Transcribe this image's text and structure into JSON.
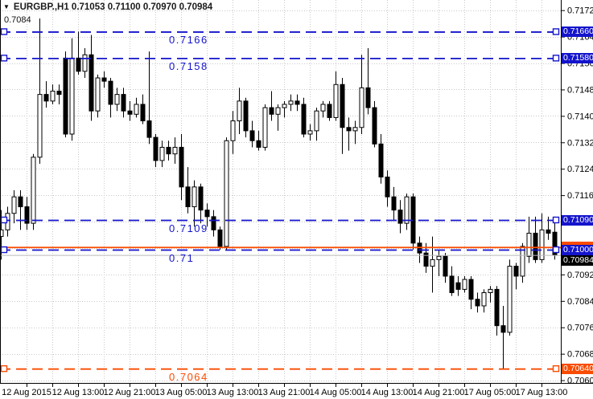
{
  "window": {
    "title": "EURGBP.,H1 0.71053 0.71100 0.70970 0.70984",
    "dropdown_icon": "▼",
    "annotation": "0.7084"
  },
  "colors": {
    "background": "#ffffff",
    "grid": "#c9c9c9",
    "candle_up_fill": "#ffffff",
    "candle_down_fill": "#000000",
    "candle_outline": "#000000",
    "level_blue": "#1414cc",
    "level_orange": "#f94b00",
    "bid_line": "#b9b9b9",
    "bid_box": "#000000",
    "axis_text": "#000000"
  },
  "chart_data": {
    "type": "candlestick",
    "symbol": "EURGBP.",
    "timeframe": "H1",
    "last_candle": {
      "open": "0.71053",
      "high": "0.71100",
      "low": "0.70970",
      "close": "0.70984"
    },
    "bid": "0.70984",
    "y_axis_labels": [
      "0.71725",
      "0.71645",
      "0.71565",
      "0.71485",
      "0.71405",
      "0.71325",
      "0.71245",
      "0.71165",
      "0.71085",
      "0.71005",
      "0.70925",
      "0.70845",
      "0.70765",
      "0.70685",
      "0.70605"
    ],
    "x_axis_labels": [
      "12 Aug 2015",
      "12 Aug 13:00",
      "12 Aug 21:00",
      "13 Aug 05:00",
      "13 Aug 13:00",
      "13 Aug 21:00",
      "14 Aug 05:00",
      "14 Aug 13:00",
      "14 Aug 21:00",
      "17 Aug 05:00",
      "17 Aug 13:00"
    ],
    "levels": [
      {
        "price": 0.7166,
        "text": "0.7166",
        "axis_text": "0.71660",
        "color_key": "blue",
        "dash": true,
        "handles": true
      },
      {
        "price": 0.7158,
        "text": "0.7158",
        "axis_text": "0.71580",
        "color_key": "blue",
        "dash": true,
        "handles": true
      },
      {
        "price": 0.7109,
        "text": "0.7109",
        "axis_text": "0.71090",
        "color_key": "blue",
        "dash": true,
        "handles": true
      },
      {
        "price": 0.71008,
        "text": "",
        "axis_text": "",
        "color_key": "orange",
        "dash": false,
        "handles": false
      },
      {
        "price": 0.71,
        "text": "0.71",
        "axis_text": "0.71000",
        "color_key": "blue",
        "dash": true,
        "handles": true
      },
      {
        "price": 0.7064,
        "text": "0.7064",
        "axis_text": "0.70640",
        "color_key": "orange",
        "dash": true,
        "handles": true
      }
    ],
    "candles": [
      {
        "t": "12 Aug 01:00",
        "o": 0.7104,
        "h": 0.7112,
        "l": 0.7097,
        "c": 0.7106
      },
      {
        "t": "12 Aug 02:00",
        "o": 0.7106,
        "h": 0.7113,
        "l": 0.7104,
        "c": 0.7111
      },
      {
        "t": "12 Aug 03:00",
        "o": 0.7111,
        "h": 0.7118,
        "l": 0.7108,
        "c": 0.7116
      },
      {
        "t": "12 Aug 04:00",
        "o": 0.7116,
        "h": 0.7118,
        "l": 0.7106,
        "c": 0.7113
      },
      {
        "t": "12 Aug 05:00",
        "o": 0.7113,
        "h": 0.7116,
        "l": 0.7106,
        "c": 0.7108
      },
      {
        "t": "12 Aug 06:00",
        "o": 0.7108,
        "h": 0.7129,
        "l": 0.7106,
        "c": 0.7128
      },
      {
        "t": "12 Aug 07:00",
        "o": 0.7128,
        "h": 0.717,
        "l": 0.7126,
        "c": 0.7147
      },
      {
        "t": "12 Aug 08:00",
        "o": 0.7147,
        "h": 0.7151,
        "l": 0.7143,
        "c": 0.7145
      },
      {
        "t": "12 Aug 09:00",
        "o": 0.7145,
        "h": 0.715,
        "l": 0.7144,
        "c": 0.7148
      },
      {
        "t": "12 Aug 10:00",
        "o": 0.7148,
        "h": 0.715,
        "l": 0.7144,
        "c": 0.7147
      },
      {
        "t": "12 Aug 11:00",
        "o": 0.7158,
        "h": 0.716,
        "l": 0.7134,
        "c": 0.7135
      },
      {
        "t": "12 Aug 12:00",
        "o": 0.7135,
        "h": 0.7164,
        "l": 0.7133,
        "c": 0.7158
      },
      {
        "t": "12 Aug 13:00",
        "o": 0.7158,
        "h": 0.7166,
        "l": 0.7153,
        "c": 0.7154
      },
      {
        "t": "12 Aug 14:00",
        "o": 0.7154,
        "h": 0.7161,
        "l": 0.7152,
        "c": 0.7159
      },
      {
        "t": "12 Aug 15:00",
        "o": 0.7159,
        "h": 0.7165,
        "l": 0.7139,
        "c": 0.7142
      },
      {
        "t": "12 Aug 16:00",
        "o": 0.7142,
        "h": 0.7153,
        "l": 0.714,
        "c": 0.7152
      },
      {
        "t": "12 Aug 17:00",
        "o": 0.7152,
        "h": 0.7154,
        "l": 0.7149,
        "c": 0.7151
      },
      {
        "t": "12 Aug 18:00",
        "o": 0.7151,
        "h": 0.7152,
        "l": 0.714,
        "c": 0.7144
      },
      {
        "t": "12 Aug 19:00",
        "o": 0.7144,
        "h": 0.7149,
        "l": 0.7142,
        "c": 0.7147
      },
      {
        "t": "12 Aug 20:00",
        "o": 0.7147,
        "h": 0.7149,
        "l": 0.714,
        "c": 0.7142
      },
      {
        "t": "12 Aug 21:00",
        "o": 0.7142,
        "h": 0.7145,
        "l": 0.7139,
        "c": 0.7141
      },
      {
        "t": "12 Aug 22:00",
        "o": 0.7141,
        "h": 0.7146,
        "l": 0.714,
        "c": 0.7144
      },
      {
        "t": "12 Aug 23:00",
        "o": 0.7144,
        "h": 0.7147,
        "l": 0.7138,
        "c": 0.7139
      },
      {
        "t": "13 Aug 00:00",
        "o": 0.7139,
        "h": 0.716,
        "l": 0.7132,
        "c": 0.7134
      },
      {
        "t": "13 Aug 01:00",
        "o": 0.7134,
        "h": 0.7135,
        "l": 0.7125,
        "c": 0.7127
      },
      {
        "t": "13 Aug 02:00",
        "o": 0.7127,
        "h": 0.7133,
        "l": 0.7125,
        "c": 0.7131
      },
      {
        "t": "13 Aug 03:00",
        "o": 0.7131,
        "h": 0.7133,
        "l": 0.7127,
        "c": 0.7129
      },
      {
        "t": "13 Aug 04:00",
        "o": 0.7129,
        "h": 0.7134,
        "l": 0.7126,
        "c": 0.7131
      },
      {
        "t": "13 Aug 05:00",
        "o": 0.7131,
        "h": 0.7135,
        "l": 0.7115,
        "c": 0.7119
      },
      {
        "t": "13 Aug 06:00",
        "o": 0.7119,
        "h": 0.7125,
        "l": 0.7111,
        "c": 0.7113
      },
      {
        "t": "13 Aug 07:00",
        "o": 0.7113,
        "h": 0.7121,
        "l": 0.7107,
        "c": 0.7119
      },
      {
        "t": "13 Aug 08:00",
        "o": 0.7119,
        "h": 0.712,
        "l": 0.7108,
        "c": 0.7112
      },
      {
        "t": "13 Aug 09:00",
        "o": 0.7112,
        "h": 0.7114,
        "l": 0.7107,
        "c": 0.711
      },
      {
        "t": "13 Aug 10:00",
        "o": 0.711,
        "h": 0.7112,
        "l": 0.7104,
        "c": 0.7106
      },
      {
        "t": "13 Aug 11:00",
        "o": 0.7106,
        "h": 0.7107,
        "l": 0.71,
        "c": 0.7101
      },
      {
        "t": "13 Aug 12:00",
        "o": 0.7101,
        "h": 0.7134,
        "l": 0.71,
        "c": 0.7133
      },
      {
        "t": "13 Aug 13:00",
        "o": 0.7133,
        "h": 0.7142,
        "l": 0.7129,
        "c": 0.7139
      },
      {
        "t": "13 Aug 14:00",
        "o": 0.7139,
        "h": 0.7149,
        "l": 0.7135,
        "c": 0.7145
      },
      {
        "t": "13 Aug 15:00",
        "o": 0.7145,
        "h": 0.7146,
        "l": 0.7134,
        "c": 0.7136
      },
      {
        "t": "13 Aug 16:00",
        "o": 0.7136,
        "h": 0.7139,
        "l": 0.7131,
        "c": 0.7133
      },
      {
        "t": "13 Aug 17:00",
        "o": 0.7133,
        "h": 0.7136,
        "l": 0.713,
        "c": 0.7131
      },
      {
        "t": "13 Aug 18:00",
        "o": 0.7131,
        "h": 0.7144,
        "l": 0.713,
        "c": 0.7143
      },
      {
        "t": "13 Aug 19:00",
        "o": 0.7143,
        "h": 0.7148,
        "l": 0.7139,
        "c": 0.7141
      },
      {
        "t": "13 Aug 20:00",
        "o": 0.7141,
        "h": 0.7144,
        "l": 0.7136,
        "c": 0.7143
      },
      {
        "t": "13 Aug 21:00",
        "o": 0.7143,
        "h": 0.7145,
        "l": 0.714,
        "c": 0.7144
      },
      {
        "t": "13 Aug 22:00",
        "o": 0.7144,
        "h": 0.7147,
        "l": 0.7142,
        "c": 0.7145
      },
      {
        "t": "13 Aug 23:00",
        "o": 0.7145,
        "h": 0.7147,
        "l": 0.7142,
        "c": 0.7144
      },
      {
        "t": "14 Aug 00:00",
        "o": 0.7144,
        "h": 0.7146,
        "l": 0.7134,
        "c": 0.7135
      },
      {
        "t": "14 Aug 01:00",
        "o": 0.7135,
        "h": 0.7138,
        "l": 0.7133,
        "c": 0.7136
      },
      {
        "t": "14 Aug 02:00",
        "o": 0.7136,
        "h": 0.7143,
        "l": 0.7133,
        "c": 0.7142
      },
      {
        "t": "14 Aug 03:00",
        "o": 0.7142,
        "h": 0.7145,
        "l": 0.714,
        "c": 0.7144
      },
      {
        "t": "14 Aug 04:00",
        "o": 0.7144,
        "h": 0.7145,
        "l": 0.7139,
        "c": 0.714
      },
      {
        "t": "14 Aug 05:00",
        "o": 0.714,
        "h": 0.7154,
        "l": 0.7139,
        "c": 0.715
      },
      {
        "t": "14 Aug 06:00",
        "o": 0.715,
        "h": 0.7152,
        "l": 0.7129,
        "c": 0.7137
      },
      {
        "t": "14 Aug 07:00",
        "o": 0.7137,
        "h": 0.714,
        "l": 0.713,
        "c": 0.7136
      },
      {
        "t": "14 Aug 08:00",
        "o": 0.7136,
        "h": 0.7139,
        "l": 0.7132,
        "c": 0.7137
      },
      {
        "t": "14 Aug 09:00",
        "o": 0.7137,
        "h": 0.7159,
        "l": 0.7135,
        "c": 0.7149
      },
      {
        "t": "14 Aug 10:00",
        "o": 0.7149,
        "h": 0.7161,
        "l": 0.7141,
        "c": 0.7143
      },
      {
        "t": "14 Aug 11:00",
        "o": 0.7143,
        "h": 0.7145,
        "l": 0.7131,
        "c": 0.7132
      },
      {
        "t": "14 Aug 12:00",
        "o": 0.7132,
        "h": 0.7135,
        "l": 0.712,
        "c": 0.7122
      },
      {
        "t": "14 Aug 13:00",
        "o": 0.7122,
        "h": 0.7124,
        "l": 0.7113,
        "c": 0.7116
      },
      {
        "t": "14 Aug 14:00",
        "o": 0.7116,
        "h": 0.7119,
        "l": 0.7109,
        "c": 0.7112
      },
      {
        "t": "14 Aug 15:00",
        "o": 0.7112,
        "h": 0.7115,
        "l": 0.7105,
        "c": 0.7108
      },
      {
        "t": "14 Aug 16:00",
        "o": 0.7108,
        "h": 0.7117,
        "l": 0.7106,
        "c": 0.7116
      },
      {
        "t": "14 Aug 17:00",
        "o": 0.7116,
        "h": 0.7117,
        "l": 0.71,
        "c": 0.7102
      },
      {
        "t": "14 Aug 18:00",
        "o": 0.7102,
        "h": 0.7104,
        "l": 0.7096,
        "c": 0.7099
      },
      {
        "t": "14 Aug 19:00",
        "o": 0.7099,
        "h": 0.7102,
        "l": 0.7093,
        "c": 0.7095
      },
      {
        "t": "14 Aug 20:00",
        "o": 0.7095,
        "h": 0.7104,
        "l": 0.7087,
        "c": 0.7097
      },
      {
        "t": "14 Aug 21:00",
        "o": 0.7097,
        "h": 0.71,
        "l": 0.7092,
        "c": 0.7098
      },
      {
        "t": "14 Aug 22:00",
        "o": 0.7098,
        "h": 0.7099,
        "l": 0.709,
        "c": 0.7092
      },
      {
        "t": "14 Aug 23:00",
        "o": 0.7092,
        "h": 0.7095,
        "l": 0.7086,
        "c": 0.7087
      },
      {
        "t": "17 Aug 00:00",
        "o": 0.709,
        "h": 0.7092,
        "l": 0.7086,
        "c": 0.7088
      },
      {
        "t": "17 Aug 01:00",
        "o": 0.7088,
        "h": 0.7092,
        "l": 0.7087,
        "c": 0.7091
      },
      {
        "t": "17 Aug 02:00",
        "o": 0.7091,
        "h": 0.7092,
        "l": 0.7082,
        "c": 0.7085
      },
      {
        "t": "17 Aug 03:00",
        "o": 0.7085,
        "h": 0.7087,
        "l": 0.7081,
        "c": 0.7083
      },
      {
        "t": "17 Aug 04:00",
        "o": 0.7083,
        "h": 0.7088,
        "l": 0.7081,
        "c": 0.7087
      },
      {
        "t": "17 Aug 05:00",
        "o": 0.7087,
        "h": 0.7089,
        "l": 0.7084,
        "c": 0.7088
      },
      {
        "t": "17 Aug 06:00",
        "o": 0.7088,
        "h": 0.7089,
        "l": 0.7074,
        "c": 0.7077
      },
      {
        "t": "17 Aug 07:00",
        "o": 0.7077,
        "h": 0.7083,
        "l": 0.7064,
        "c": 0.7075
      },
      {
        "t": "17 Aug 08:00",
        "o": 0.7075,
        "h": 0.7097,
        "l": 0.7074,
        "c": 0.7095
      },
      {
        "t": "17 Aug 09:00",
        "o": 0.7095,
        "h": 0.7096,
        "l": 0.7088,
        "c": 0.7092
      },
      {
        "t": "17 Aug 10:00",
        "o": 0.7092,
        "h": 0.7102,
        "l": 0.709,
        "c": 0.7101
      },
      {
        "t": "17 Aug 11:00",
        "o": 0.7098,
        "h": 0.711,
        "l": 0.7096,
        "c": 0.7105
      },
      {
        "t": "17 Aug 12:00",
        "o": 0.7105,
        "h": 0.711,
        "l": 0.7096,
        "c": 0.7097
      },
      {
        "t": "17 Aug 13:00",
        "o": 0.7097,
        "h": 0.7111,
        "l": 0.7096,
        "c": 0.7106
      },
      {
        "t": "17 Aug 14:00",
        "o": 0.7106,
        "h": 0.711,
        "l": 0.7103,
        "c": 0.7105
      },
      {
        "t": "17 Aug 15:00",
        "o": 0.71053,
        "h": 0.711,
        "l": 0.7097,
        "c": 0.70984
      }
    ]
  }
}
